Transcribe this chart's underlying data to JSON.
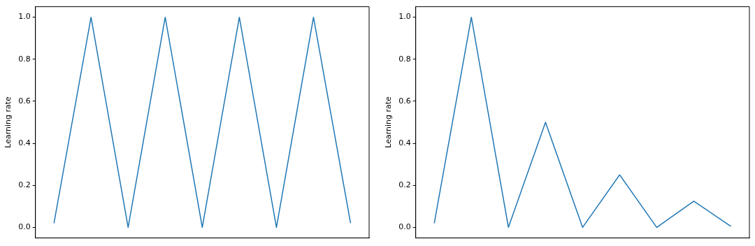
{
  "chart_data": [
    {
      "type": "line",
      "ylabel": "Learning rate",
      "categories": [
        null,
        null,
        null,
        null,
        null,
        null,
        null,
        null,
        null
      ],
      "series": [
        {
          "color": "#1f77b4",
          "values": [
            0.02,
            1,
            0,
            1,
            0,
            1,
            0,
            1,
            0.02
          ]
        }
      ],
      "ylim": [
        -0.05,
        1.05
      ],
      "yticks": [
        {
          "value": 0,
          "label": "0.0"
        },
        {
          "value": 0.2,
          "label": "0.2"
        },
        {
          "value": 0.4,
          "label": "0.4"
        },
        {
          "value": 0.6,
          "label": "0.6"
        },
        {
          "value": 0.8,
          "label": "0.8"
        },
        {
          "value": 1,
          "label": "1.0"
        }
      ],
      "grid": false,
      "legend": false,
      "tick_labels": "y",
      "marker": "none",
      "line_style": "solid"
    },
    {
      "type": "line",
      "ylabel": "Learning rate",
      "categories": [
        null,
        null,
        null,
        null,
        null,
        null,
        null,
        null,
        null
      ],
      "series": [
        {
          "color": "#1f77b4",
          "values": [
            0.02,
            1,
            0,
            0.5,
            0,
            0.25,
            0,
            0.125,
            0.005
          ]
        }
      ],
      "ylim": [
        -0.05,
        1.05
      ],
      "yticks": [
        {
          "value": 0,
          "label": "0.0"
        },
        {
          "value": 0.2,
          "label": "0.2"
        },
        {
          "value": 0.4,
          "label": "0.4"
        },
        {
          "value": 0.6,
          "label": "0.6"
        },
        {
          "value": 0.8,
          "label": "0.8"
        },
        {
          "value": 1,
          "label": "1.0"
        }
      ],
      "grid": false,
      "legend": false,
      "tick_labels": "y",
      "marker": "none",
      "line_style": "solid"
    }
  ]
}
